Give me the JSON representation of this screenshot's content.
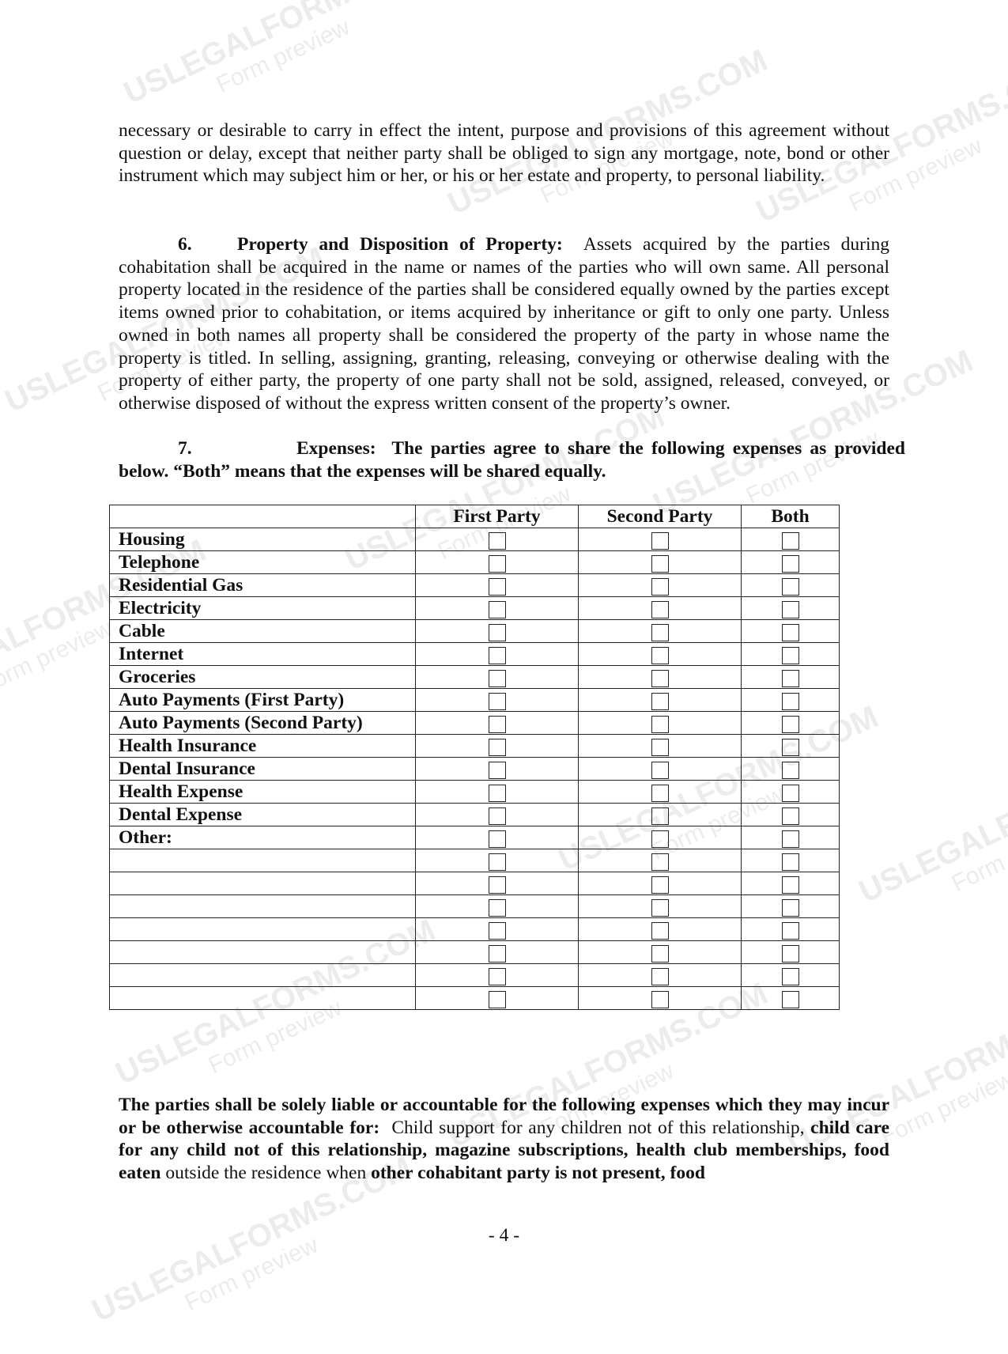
{
  "continuation_text": "necessary or desirable to carry in effect the intent, purpose and provisions of this agreement without question or delay, except that neither party shall be obliged to sign any mortgage, note, bond or other instrument which may subject him or her, or his or her estate and property, to personal liability.",
  "section6": {
    "number": "6.",
    "heading": "Property and Disposition of Property:",
    "body": "Assets acquired by the parties during cohabitation shall be acquired in the name or names of the parties who will own same.  All personal property located in the residence of the parties shall be considered equally owned by the parties except items owned prior to cohabitation, or items acquired by inheritance or gift to only one party. Unless owned in both names all property shall be considered the property of the party in whose name the property is titled. In selling, assigning, granting, releasing, conveying or otherwise dealing with the property of either party, the property of one party shall not be sold, assigned, released, conveyed, or otherwise disposed of without the express written consent of the property’s owner."
  },
  "section7": {
    "number": "7.",
    "heading": "Expenses:",
    "body": "The parties agree to share the following expenses as provided below.  “Both” means that the expenses will be shared equally."
  },
  "table": {
    "columns": [
      "",
      "First Party",
      "Second Party",
      "Both"
    ],
    "rows": [
      "Housing",
      "Telephone",
      "Residential Gas",
      "Electricity",
      "Cable",
      "Internet",
      "Groceries",
      "Auto Payments (First Party)",
      "Auto Payments (Second Party)",
      "Health Insurance",
      "Dental Insurance",
      "Health Expense",
      "Dental Expense",
      "Other:",
      "",
      "",
      "",
      "",
      "",
      "",
      ""
    ]
  },
  "closing": {
    "bold1": "The parties shall be solely liable or accountable for the following expenses which they may incur or be otherwise accountable for:",
    "normal1": "Child support for any children not of this relationship,",
    "bold2": "child care for any child not of this relationship, magazine subscriptions, health club memberships, food eaten",
    "normal2": "outside the residence when",
    "bold3": "other cohabitant party is not present, food"
  },
  "page_number": "- 4 -",
  "watermark": {
    "brand": "USLEGALFORMS.COM",
    "sub": "Form preview"
  }
}
